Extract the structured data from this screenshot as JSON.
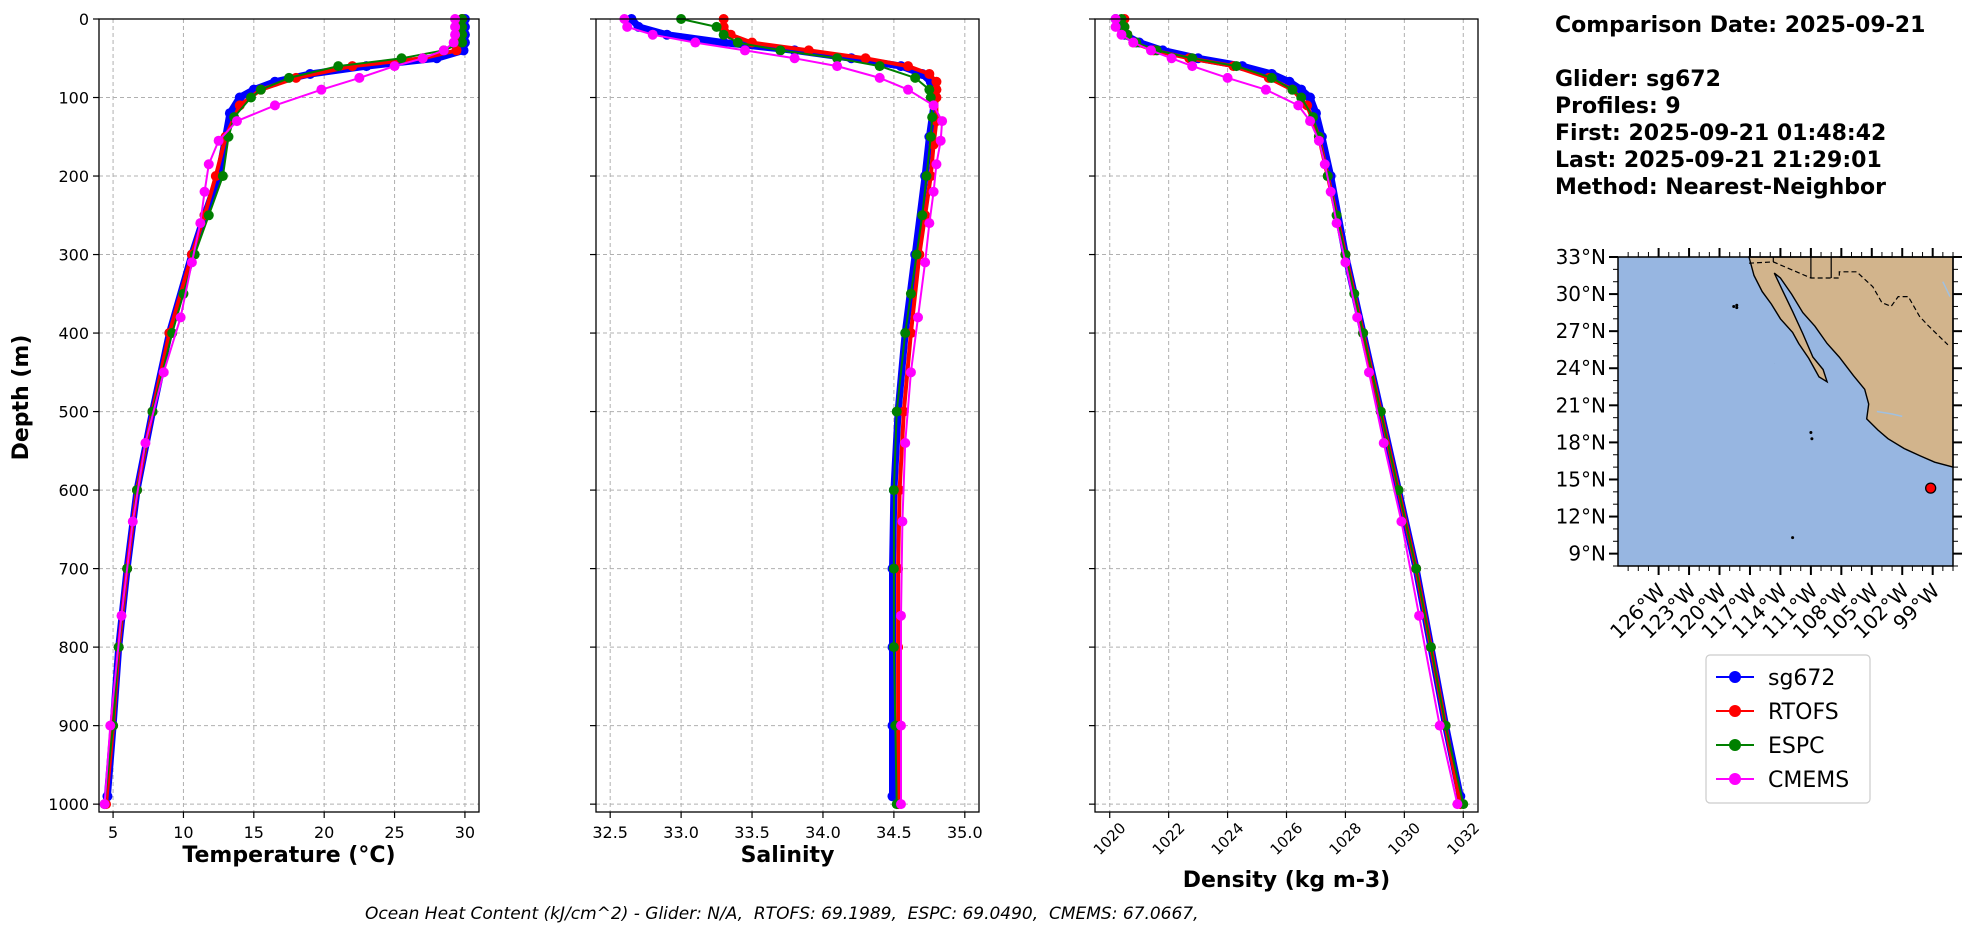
{
  "info": {
    "comparison_date": "Comparison Date: 2025-09-21",
    "glider": "Glider: sg672",
    "profiles": "Profiles: 9",
    "first": "First: 2025-09-21 01:48:42",
    "last": "Last: 2025-09-21 21:29:01",
    "method": "Method: Nearest-Neighbor"
  },
  "footer": "Ocean Heat Content (kJ/cm^2) - Glider: N/A,  RTOFS: 69.1989,  ESPC: 69.0490,  CMEMS: 67.0667,",
  "colors": {
    "sg672": "#0000ff",
    "RTOFS": "#ff0000",
    "ESPC": "#008000",
    "CMEMS": "#ff00ff",
    "glider_raw": "#00ffff",
    "ocean": "#97b6e1",
    "land": "#d2b48c",
    "marker": "#ff0000"
  },
  "legend": [
    "sg672",
    "RTOFS",
    "ESPC",
    "CMEMS"
  ],
  "chart_data": [
    {
      "type": "line",
      "xlabel": "Temperature (°C)",
      "ylabel": "Depth (m)",
      "xlim": [
        4,
        31
      ],
      "ylim": [
        1010,
        0
      ],
      "xticks": [
        5,
        10,
        15,
        20,
        25,
        30
      ],
      "yticks": [
        0,
        100,
        200,
        300,
        400,
        500,
        600,
        700,
        800,
        900,
        1000
      ],
      "grid": true,
      "series": [
        {
          "name": "sg672",
          "depth": [
            0,
            10,
            20,
            30,
            40,
            50,
            60,
            70,
            80,
            90,
            100,
            120,
            150,
            200,
            250,
            300,
            400,
            500,
            600,
            700,
            800,
            900,
            990
          ],
          "values": [
            30.0,
            30.0,
            30.0,
            30.0,
            29.9,
            28.0,
            23.0,
            19.0,
            16.5,
            15.0,
            14.0,
            13.3,
            13.0,
            12.5,
            11.5,
            10.6,
            9.0,
            7.8,
            6.7,
            6.0,
            5.4,
            5.0,
            4.6
          ]
        },
        {
          "name": "RTOFS",
          "depth": [
            0,
            10,
            20,
            30,
            40,
            50,
            60,
            75,
            90,
            110,
            150,
            200,
            250,
            300,
            400,
            500,
            600,
            700,
            800,
            900,
            1000
          ],
          "values": [
            29.8,
            29.7,
            29.7,
            29.6,
            29.4,
            27.0,
            22.0,
            18.0,
            15.5,
            14.0,
            13.0,
            12.3,
            11.5,
            10.6,
            9.0,
            7.8,
            6.7,
            6.0,
            5.4,
            5.0,
            4.5
          ]
        },
        {
          "name": "ESPC",
          "depth": [
            0,
            10,
            20,
            30,
            40,
            50,
            60,
            75,
            90,
            100,
            125,
            150,
            200,
            250,
            300,
            350,
            400,
            500,
            600,
            700,
            800,
            900,
            1000
          ],
          "values": [
            29.8,
            29.8,
            29.8,
            29.8,
            28.5,
            25.5,
            21.0,
            17.5,
            15.5,
            14.8,
            13.6,
            13.2,
            12.8,
            11.8,
            10.8,
            10.0,
            9.2,
            7.8,
            6.7,
            6.0,
            5.4,
            5.0,
            4.4
          ]
        },
        {
          "name": "CMEMS",
          "depth": [
            0,
            10,
            20,
            30,
            40,
            50,
            60,
            75,
            90,
            110,
            130,
            155,
            185,
            220,
            260,
            310,
            380,
            450,
            540,
            640,
            760,
            900,
            1000
          ],
          "values": [
            29.3,
            29.3,
            29.3,
            29.2,
            28.5,
            27.0,
            25.0,
            22.5,
            19.8,
            16.5,
            13.8,
            12.5,
            11.8,
            11.5,
            11.2,
            10.6,
            9.8,
            8.6,
            7.3,
            6.4,
            5.6,
            4.8,
            4.4
          ]
        }
      ]
    },
    {
      "type": "line",
      "xlabel": "Salinity",
      "xlim": [
        32.4,
        35.1
      ],
      "ylim": [
        1010,
        0
      ],
      "xticks": [
        32.5,
        33.0,
        33.5,
        34.0,
        34.5,
        35.0
      ],
      "grid": true,
      "series": [
        {
          "name": "sg672",
          "depth": [
            0,
            10,
            20,
            30,
            40,
            50,
            60,
            70,
            80,
            90,
            100,
            150,
            200,
            300,
            400,
            500,
            600,
            700,
            800,
            900,
            990
          ],
          "values": [
            32.65,
            32.7,
            32.9,
            33.3,
            33.8,
            34.2,
            34.55,
            34.7,
            34.76,
            34.78,
            34.79,
            34.75,
            34.72,
            34.65,
            34.58,
            34.53,
            34.5,
            34.49,
            34.49,
            34.49,
            34.49
          ]
        },
        {
          "name": "RTOFS",
          "depth": [
            0,
            10,
            20,
            30,
            40,
            50,
            60,
            70,
            80,
            90,
            100,
            130,
            160,
            200,
            250,
            300,
            400,
            500,
            600,
            700,
            800,
            900,
            1000
          ],
          "values": [
            33.3,
            33.3,
            33.35,
            33.5,
            33.9,
            34.3,
            34.6,
            34.75,
            34.8,
            34.8,
            34.8,
            34.8,
            34.78,
            34.76,
            34.72,
            34.68,
            34.62,
            34.57,
            34.54,
            34.53,
            34.53,
            34.53,
            34.53
          ]
        },
        {
          "name": "ESPC",
          "depth": [
            0,
            10,
            20,
            30,
            40,
            50,
            60,
            75,
            90,
            100,
            125,
            150,
            200,
            250,
            300,
            350,
            400,
            500,
            600,
            700,
            800,
            900,
            1000
          ],
          "values": [
            33.0,
            33.25,
            33.3,
            33.4,
            33.7,
            34.1,
            34.4,
            34.65,
            34.75,
            34.76,
            34.77,
            34.76,
            34.73,
            34.7,
            34.66,
            34.62,
            34.58,
            34.52,
            34.5,
            34.5,
            34.5,
            34.51,
            34.52
          ]
        },
        {
          "name": "CMEMS",
          "depth": [
            0,
            10,
            20,
            30,
            40,
            50,
            60,
            75,
            90,
            110,
            130,
            155,
            185,
            220,
            260,
            310,
            380,
            450,
            540,
            640,
            760,
            900,
            1000
          ],
          "values": [
            32.6,
            32.62,
            32.8,
            33.1,
            33.45,
            33.8,
            34.1,
            34.4,
            34.6,
            34.78,
            34.84,
            34.83,
            34.8,
            34.78,
            34.75,
            34.72,
            34.67,
            34.62,
            34.58,
            34.56,
            34.55,
            34.55,
            34.55
          ]
        }
      ]
    },
    {
      "type": "line",
      "xlabel": "Density (kg m-3)",
      "xlim": [
        1019.5,
        1032.5
      ],
      "ylim": [
        1010,
        0
      ],
      "xticks": [
        1020,
        1022,
        1024,
        1026,
        1028,
        1030,
        1032
      ],
      "grid": true,
      "series": [
        {
          "name": "sg672",
          "depth": [
            0,
            10,
            20,
            30,
            40,
            50,
            60,
            70,
            80,
            90,
            100,
            120,
            150,
            200,
            300,
            400,
            500,
            600,
            700,
            800,
            900,
            990
          ],
          "values": [
            1020.2,
            1020.3,
            1020.5,
            1021.0,
            1021.8,
            1023.0,
            1024.5,
            1025.5,
            1026.1,
            1026.5,
            1026.8,
            1027.0,
            1027.2,
            1027.5,
            1028.0,
            1028.6,
            1029.2,
            1029.8,
            1030.4,
            1030.9,
            1031.4,
            1031.9
          ]
        },
        {
          "name": "RTOFS",
          "depth": [
            0,
            10,
            20,
            30,
            40,
            50,
            60,
            75,
            90,
            110,
            150,
            200,
            300,
            400,
            500,
            600,
            700,
            800,
            900,
            1000
          ],
          "values": [
            1020.5,
            1020.5,
            1020.6,
            1020.8,
            1021.5,
            1022.7,
            1024.2,
            1025.4,
            1026.2,
            1026.7,
            1027.1,
            1027.4,
            1028.0,
            1028.6,
            1029.2,
            1029.8,
            1030.4,
            1030.9,
            1031.4,
            1031.9
          ]
        },
        {
          "name": "ESPC",
          "depth": [
            0,
            10,
            20,
            30,
            40,
            50,
            60,
            75,
            90,
            100,
            125,
            150,
            200,
            250,
            300,
            350,
            400,
            500,
            600,
            700,
            800,
            900,
            1000
          ],
          "values": [
            1020.4,
            1020.5,
            1020.6,
            1020.9,
            1021.6,
            1022.8,
            1024.3,
            1025.5,
            1026.2,
            1026.5,
            1026.9,
            1027.1,
            1027.4,
            1027.7,
            1028.0,
            1028.3,
            1028.6,
            1029.2,
            1029.8,
            1030.4,
            1030.9,
            1031.4,
            1032.0
          ]
        },
        {
          "name": "CMEMS",
          "depth": [
            0,
            10,
            20,
            30,
            40,
            50,
            60,
            75,
            90,
            110,
            130,
            155,
            185,
            220,
            260,
            310,
            380,
            450,
            540,
            640,
            760,
            900,
            1000
          ],
          "values": [
            1020.2,
            1020.2,
            1020.4,
            1020.8,
            1021.4,
            1022.1,
            1022.8,
            1024.0,
            1025.3,
            1026.4,
            1026.8,
            1027.1,
            1027.3,
            1027.5,
            1027.7,
            1028.0,
            1028.4,
            1028.8,
            1029.3,
            1029.9,
            1030.5,
            1031.2,
            1031.8
          ]
        }
      ]
    },
    {
      "type": "map",
      "lon_range": [
        -130,
        -97
      ],
      "lat_range": [
        8,
        33
      ],
      "xticks": [
        "126°W",
        "123°W",
        "120°W",
        "117°W",
        "114°W",
        "111°W",
        "108°W",
        "105°W",
        "102°W",
        "99°W"
      ],
      "xtick_values": [
        -126,
        -123,
        -120,
        -117,
        -114,
        -111,
        -108,
        -105,
        -102,
        -99
      ],
      "yticks": [
        "33°N",
        "30°N",
        "27°N",
        "24°N",
        "21°N",
        "18°N",
        "15°N",
        "12°N",
        "9°N"
      ],
      "ytick_values": [
        33,
        30,
        27,
        24,
        21,
        18,
        15,
        12,
        9
      ],
      "glider_position": {
        "lon": -99.2,
        "lat": 14.3
      }
    }
  ]
}
